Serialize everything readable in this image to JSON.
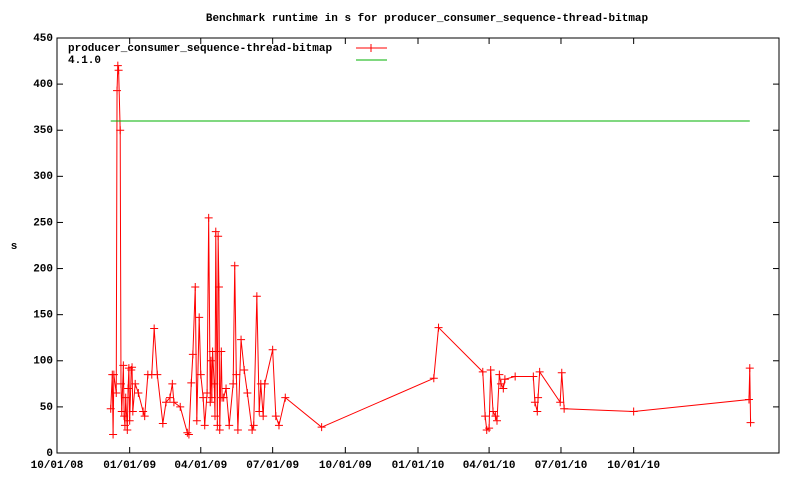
{
  "chart_data": {
    "type": "line",
    "title": "Benchmark runtime in s for producer_consumer_sequence-thread-bitmap",
    "y_label": "s",
    "xlim": [
      "10/01/08",
      "04/03/11"
    ],
    "xticks": [
      "10/01/08",
      "01/01/09",
      "04/01/09",
      "07/01/09",
      "10/01/09",
      "01/01/10",
      "04/01/10",
      "07/01/10",
      "10/01/10"
    ],
    "ylim": [
      0,
      450
    ],
    "yticks": [
      0,
      50,
      100,
      150,
      200,
      250,
      300,
      350,
      400,
      450
    ],
    "legend": "top-left",
    "series": [
      {
        "name": "producer_consumer_sequence-thread-bitmap",
        "color": "#ff0000",
        "markers": true,
        "x": [
          "12/08/08",
          "12/10/08",
          "12/11/08",
          "12/12/08",
          "12/15/08",
          "12/16/08",
          "12/17/08",
          "12/18/08",
          "12/20/08",
          "12/21/08",
          "12/22/08",
          "12/24/08",
          "12/25/08",
          "12/26/08",
          "12/27/08",
          "12/29/08",
          "12/30/08",
          "12/31/08",
          "01/01/09",
          "01/03/09",
          "01/04/09",
          "01/05/09",
          "01/08/09",
          "01/12/09",
          "01/18/09",
          "01/20/09",
          "01/24/09",
          "01/29/09",
          "02/01/09",
          "02/05/09",
          "02/12/09",
          "02/16/09",
          "02/21/09",
          "02/24/09",
          "02/26/09",
          "03/06/09",
          "03/15/09",
          "03/17/09",
          "03/20/09",
          "03/22/09",
          "03/25/09",
          "03/27/09",
          "03/30/09",
          "04/01/09",
          "04/04/09",
          "04/06/09",
          "04/09/09",
          "04/11/09",
          "04/13/09",
          "04/14/09",
          "04/15/09",
          "04/16/09",
          "04/18/09",
          "04/19/09",
          "04/20/09",
          "04/22/09",
          "04/23/09",
          "04/24/09",
          "04/25/09",
          "04/27/09",
          "04/28/09",
          "04/30/09",
          "05/03/09",
          "05/07/09",
          "05/12/09",
          "05/14/09",
          "05/16/09",
          "05/18/09",
          "05/22/09",
          "05/26/09",
          "05/30/09",
          "06/05/09",
          "06/07/09",
          "06/11/09",
          "06/14/09",
          "06/16/09",
          "06/19/09",
          "06/21/09",
          "07/01/09",
          "07/05/09",
          "07/09/09",
          "07/17/09",
          "09/01/09",
          "01/21/10",
          "01/27/10",
          "03/24/10",
          "03/27/10",
          "03/29/10",
          "04/01/10",
          "04/03/10",
          "04/06/10",
          "04/09/10",
          "04/11/10",
          "04/14/10",
          "04/16/10",
          "04/19/10",
          "04/21/10",
          "05/04/10",
          "05/27/10",
          "05/29/10",
          "06/01/10",
          "06/02/10",
          "06/04/10",
          "06/30/10",
          "07/02/10",
          "07/05/10",
          "10/01/10",
          "02/24/11",
          "02/25/11",
          "02/26/11"
        ],
        "values": [
          48,
          85,
          20,
          85,
          65,
          393,
          420,
          415,
          350,
          75,
          45,
          95,
          40,
          30,
          60,
          25,
          70,
          92,
          35,
          90,
          93,
          45,
          75,
          65,
          45,
          40,
          85,
          85,
          135,
          85,
          32,
          55,
          60,
          75,
          55,
          50,
          22,
          20,
          76,
          107,
          180,
          35,
          147,
          85,
          60,
          30,
          65,
          255,
          55,
          100,
          60,
          110,
          75,
          40,
          240,
          30,
          235,
          180,
          25,
          110,
          60,
          60,
          70,
          30,
          75,
          203,
          85,
          25,
          123,
          90,
          65,
          25,
          30,
          170,
          45,
          75,
          40,
          75,
          112,
          40,
          30,
          60,
          28,
          81,
          136,
          88,
          40,
          25,
          27,
          90,
          45,
          40,
          35,
          85,
          75,
          70,
          80,
          83,
          83,
          55,
          45,
          60,
          88,
          55,
          87,
          48,
          45,
          58,
          92,
          33
        ]
      },
      {
        "name": "4.1.0",
        "color": "#00b000",
        "markers": false,
        "x": [
          "12/08/08",
          "02/25/11"
        ],
        "values": [
          360,
          360
        ]
      }
    ]
  }
}
